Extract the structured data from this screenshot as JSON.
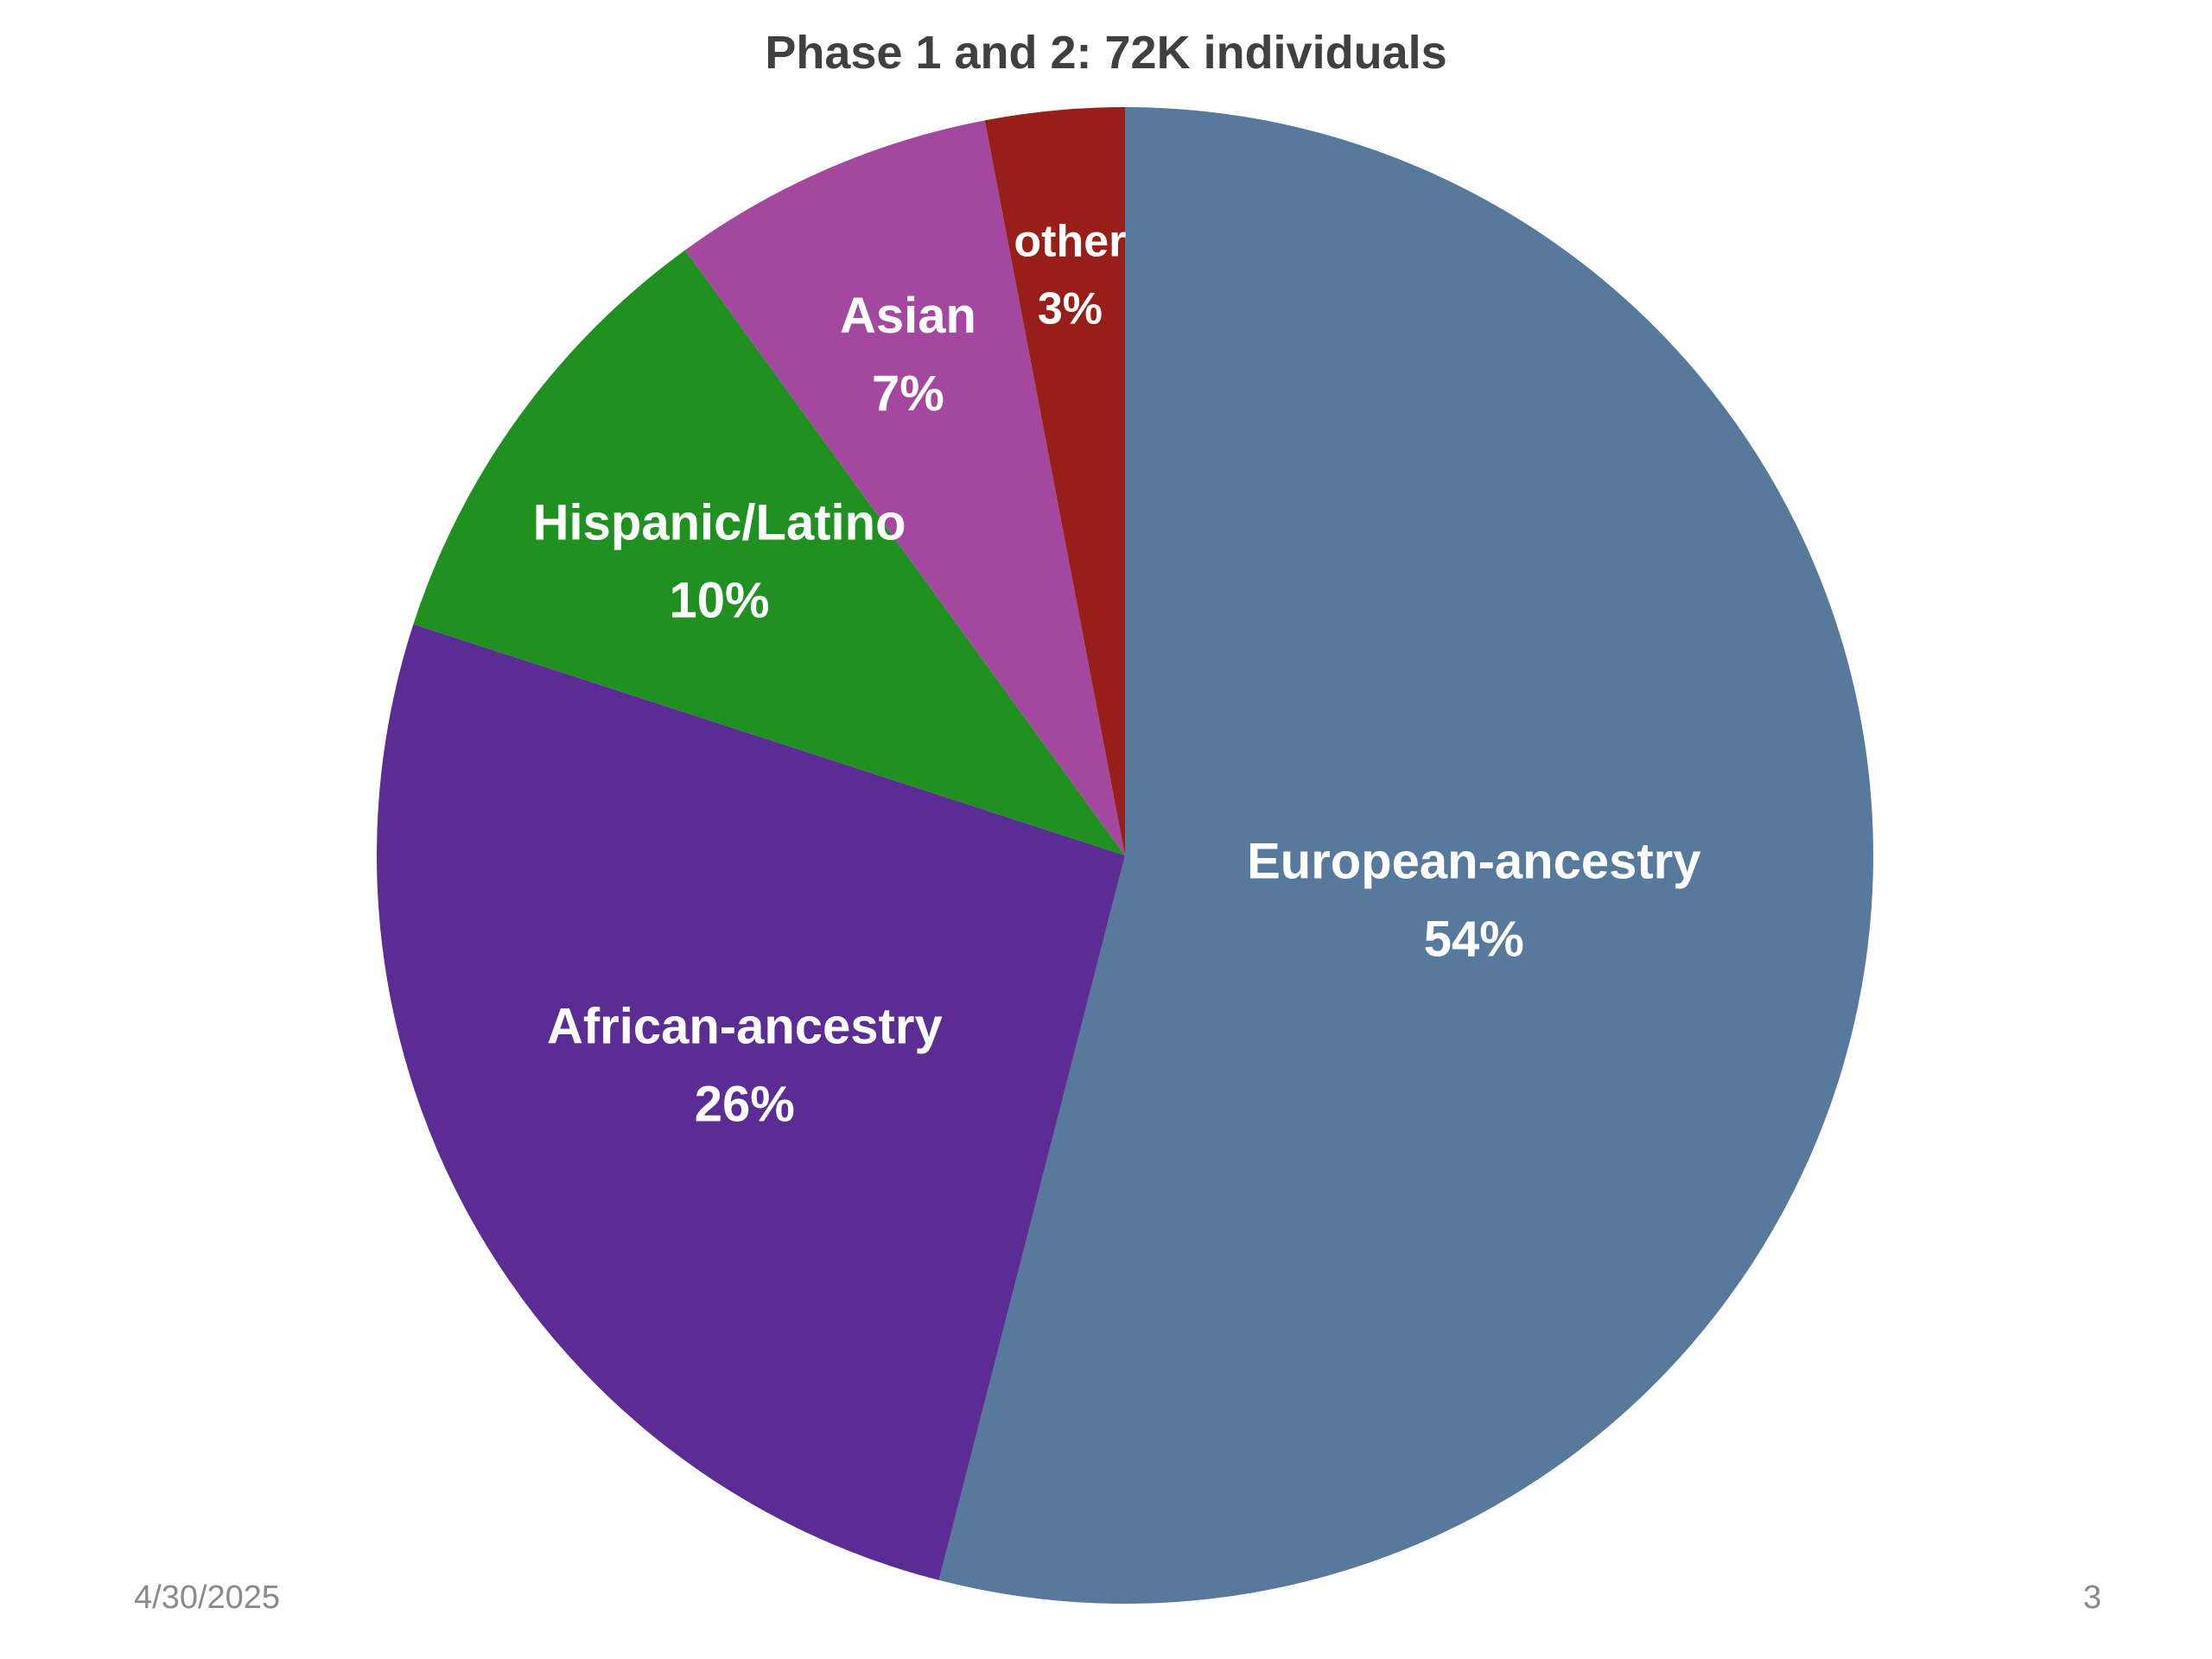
{
  "chart_data": {
    "type": "pie",
    "title": "Phase 1 and 2: 72K individuals",
    "start": "top",
    "direction": "clockwise",
    "slices": [
      {
        "label": "European-ancestry",
        "value": 54,
        "value_label": "54%",
        "color": "#57799b"
      },
      {
        "label": "African-ancestry",
        "value": 26,
        "value_label": "26%",
        "color": "#5b2d94"
      },
      {
        "label": "Hispanic/Latino",
        "value": 10,
        "value_label": "10%",
        "color": "#209121"
      },
      {
        "label": "Asian",
        "value": 7,
        "value_label": "7%",
        "color": "#a3479f"
      },
      {
        "label": "other",
        "value": 3,
        "value_label": "3%",
        "color": "#981f19"
      }
    ]
  },
  "footer": {
    "date": "4/30/2025",
    "page_number": "3"
  }
}
